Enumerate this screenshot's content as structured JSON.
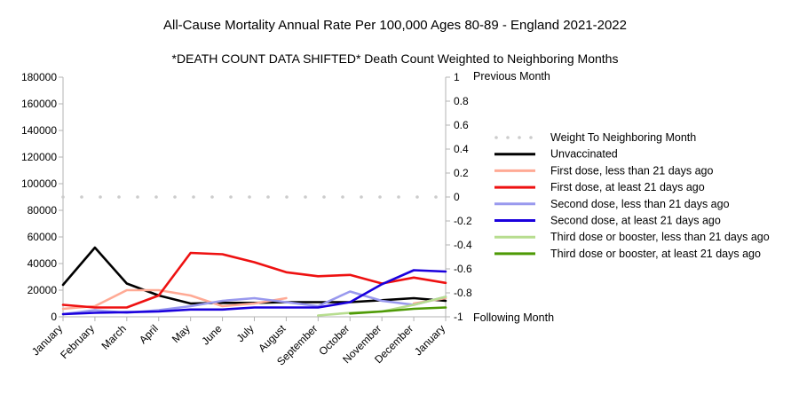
{
  "chart_data": {
    "type": "line",
    "title": "All-Cause Mortality Annual Rate Per 100,000 Ages 80-89 - England 2021-2022",
    "subtitle": "*DEATH COUNT DATA SHIFTED* Death Count Weighted to Neighboring Months",
    "categories": [
      "January",
      "February",
      "March",
      "April",
      "May",
      "June",
      "July",
      "August",
      "September",
      "October",
      "November",
      "December",
      "January"
    ],
    "y_left": {
      "min": 0,
      "max": 180000,
      "ticks": [
        "0",
        "20000",
        "40000",
        "60000",
        "80000",
        "100000",
        "120000",
        "140000",
        "160000",
        "180000"
      ]
    },
    "y_right": {
      "min": -1,
      "max": 1,
      "ticks": [
        "-1",
        "-0.8",
        "-0.6",
        "-0.4",
        "-0.2",
        "0",
        "0.2",
        "0.4",
        "0.6",
        "0.8",
        "1"
      ],
      "top_label": "Previous Month",
      "bottom_label": "Following Month"
    },
    "grid": false,
    "legend_position": "right",
    "series": [
      {
        "name": "Weight To Neighboring Month",
        "axis": "right",
        "color": "#cccccc",
        "style": "dotted",
        "values": [
          0,
          0,
          0,
          0,
          0,
          0,
          0,
          0,
          0,
          0,
          0,
          0,
          0
        ]
      },
      {
        "name": "Unvaccinated",
        "axis": "left",
        "color": "#000000",
        "style": "solid",
        "values": [
          24000,
          52000,
          25000,
          16000,
          10000,
          10500,
          10500,
          11000,
          11000,
          11000,
          12500,
          14000,
          12000
        ]
      },
      {
        "name": "First dose, less than 21 days ago",
        "axis": "left",
        "color": "#ffaa95",
        "style": "solid",
        "values": [
          6000,
          8000,
          20000,
          20000,
          16000,
          8000,
          10000,
          14000,
          null,
          null,
          null,
          10000,
          14000
        ]
      },
      {
        "name": "First dose, at least 21 days ago",
        "axis": "left",
        "color": "#ee1111",
        "style": "solid",
        "values": [
          9000,
          7000,
          7000,
          16000,
          48000,
          47000,
          41000,
          33500,
          30500,
          31500,
          25000,
          29500,
          25500
        ]
      },
      {
        "name": "Second dose, less than 21 days ago",
        "axis": "left",
        "color": "#9999ee",
        "style": "solid",
        "values": [
          2000,
          5000,
          3000,
          5000,
          8000,
          12000,
          14000,
          11000,
          8000,
          19000,
          12000,
          9000,
          15000
        ]
      },
      {
        "name": "Second dose, at least 21 days ago",
        "axis": "left",
        "color": "#1a00dd",
        "style": "solid",
        "values": [
          2000,
          3000,
          3500,
          4000,
          5500,
          5500,
          7000,
          7000,
          7000,
          11000,
          24500,
          35000,
          34000
        ]
      },
      {
        "name": "Third dose or booster, less than 21 days ago",
        "axis": "left",
        "color": "#b7dd8f",
        "style": "solid",
        "values": [
          null,
          null,
          null,
          null,
          null,
          null,
          null,
          null,
          1000,
          3000,
          4000,
          9000,
          15000
        ]
      },
      {
        "name": "Third dose or booster, at least 21 days ago",
        "axis": "left",
        "color": "#4e9a06",
        "style": "solid",
        "values": [
          null,
          null,
          null,
          null,
          null,
          null,
          null,
          null,
          null,
          2500,
          4000,
          6000,
          7000
        ]
      }
    ]
  }
}
